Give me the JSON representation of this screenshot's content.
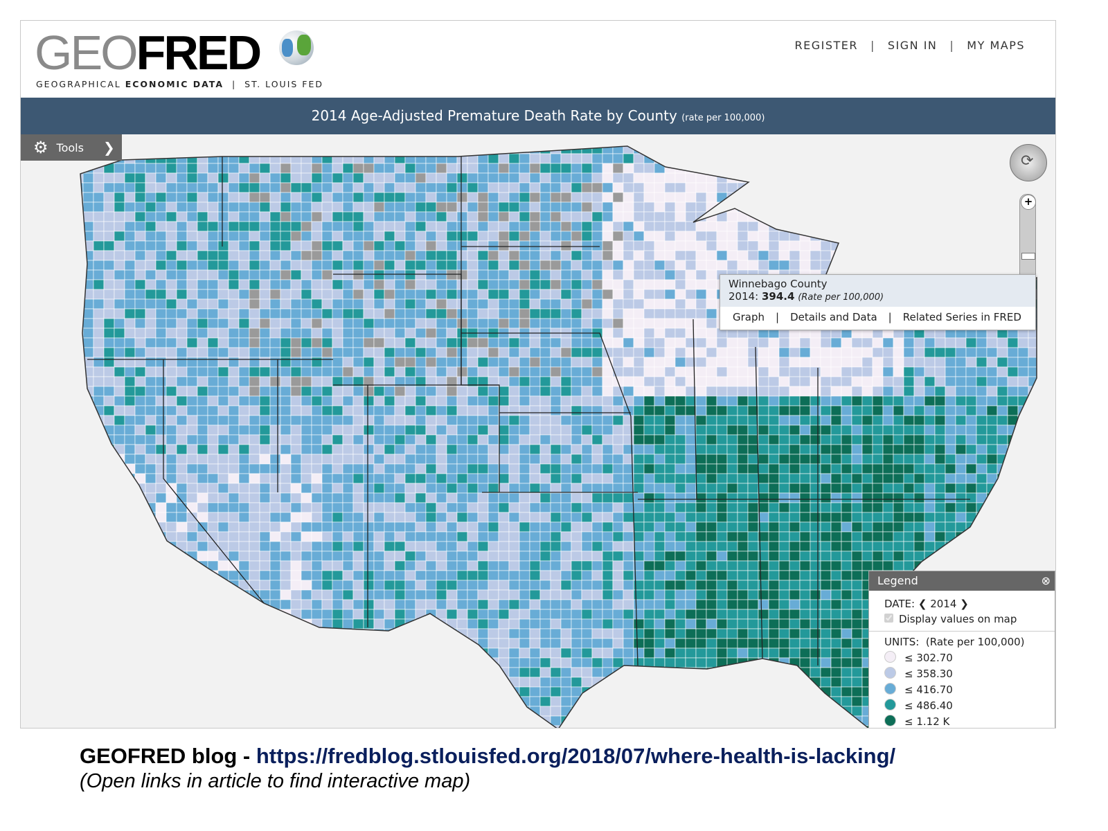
{
  "header": {
    "logo_geo": "GEO",
    "logo_fred": "FRED",
    "tagline_a": "GEOGRAPHICAL ",
    "tagline_b": "ECONOMIC DATA",
    "tagline_c": "  |  ST. LOUIS FED",
    "nav": [
      {
        "label": "REGISTER"
      },
      {
        "label": "SIGN IN"
      },
      {
        "label": "MY MAPS"
      }
    ]
  },
  "map_title": {
    "title": "2014 Age-Adjusted Premature Death Rate by County",
    "units": "(rate per 100,000)"
  },
  "tools": {
    "label": "Tools",
    "icon": "gear-icon"
  },
  "popup": {
    "county": "Winnebago County",
    "year_label": "2014: ",
    "value": "394.4",
    "units": "(Rate per 100,000)",
    "links": [
      {
        "label": "Graph"
      },
      {
        "label": "Details and Data"
      },
      {
        "label": "Related Series in FRED"
      }
    ]
  },
  "legend": {
    "title": "Legend",
    "date_label": "DATE:",
    "date": "2014",
    "display_values_label": "Display values on map",
    "display_values_checked": true,
    "units_label": "UNITS:",
    "units": "(Rate per 100,000)",
    "bins": [
      {
        "label": "≤ 302.70",
        "color": "#f4eef6"
      },
      {
        "label": "≤ 358.30",
        "color": "#bccae6"
      },
      {
        "label": "≤ 416.70",
        "color": "#68acd6"
      },
      {
        "label": "≤ 486.40",
        "color": "#23999a"
      },
      {
        "label": "≤ 1.12 K",
        "color": "#0d6e57"
      }
    ],
    "no_data_color": "#9a9a9a"
  },
  "caption": {
    "prefix": "GEOFRED blog - ",
    "url": "https://fredblog.stlouisfed.org/2018/07/where-health-is-lacking/",
    "note": "(Open links in article to find interactive map)"
  }
}
